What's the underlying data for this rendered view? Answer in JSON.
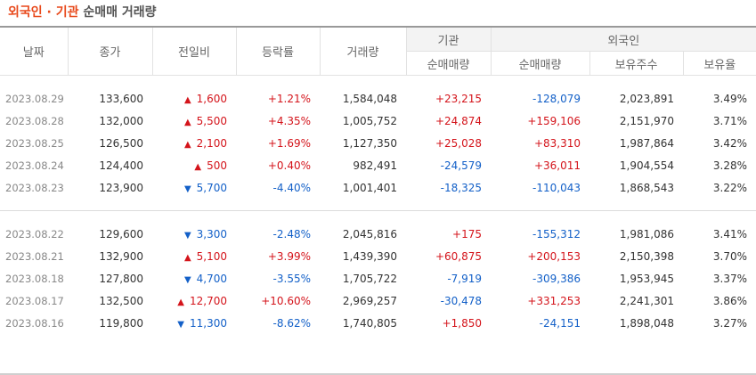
{
  "title": {
    "highlight": "외국인 · 기관",
    "rest": "순매매 거래량"
  },
  "headers": {
    "date": "날짜",
    "close": "종가",
    "change": "전일비",
    "rate": "등락률",
    "volume": "거래량",
    "institution_group": "기관",
    "foreign_group": "외국인",
    "inst_net": "순매매량",
    "foreign_net": "순매매량",
    "foreign_holdings": "보유주수",
    "foreign_ratio": "보유율"
  },
  "rows": [
    {
      "date": "2023.08.29",
      "close": "133,600",
      "dir": "up",
      "change": "1,600",
      "rate": "+1.21%",
      "volume": "1,584,048",
      "inst": "+23,215",
      "foreign": "-128,079",
      "holdings": "2,023,891",
      "ratio": "3.49%"
    },
    {
      "date": "2023.08.28",
      "close": "132,000",
      "dir": "up",
      "change": "5,500",
      "rate": "+4.35%",
      "volume": "1,005,752",
      "inst": "+24,874",
      "foreign": "+159,106",
      "holdings": "2,151,970",
      "ratio": "3.71%"
    },
    {
      "date": "2023.08.25",
      "close": "126,500",
      "dir": "up",
      "change": "2,100",
      "rate": "+1.69%",
      "volume": "1,127,350",
      "inst": "+25,028",
      "foreign": "+83,310",
      "holdings": "1,987,864",
      "ratio": "3.42%"
    },
    {
      "date": "2023.08.24",
      "close": "124,400",
      "dir": "up",
      "change": "500",
      "rate": "+0.40%",
      "volume": "982,491",
      "inst": "-24,579",
      "foreign": "+36,011",
      "holdings": "1,904,554",
      "ratio": "3.28%"
    },
    {
      "date": "2023.08.23",
      "close": "123,900",
      "dir": "down",
      "change": "5,700",
      "rate": "-4.40%",
      "volume": "1,001,401",
      "inst": "-18,325",
      "foreign": "-110,043",
      "holdings": "1,868,543",
      "ratio": "3.22%"
    },
    {
      "date": "2023.08.22",
      "close": "129,600",
      "dir": "down",
      "change": "3,300",
      "rate": "-2.48%",
      "volume": "2,045,816",
      "inst": "+175",
      "foreign": "-155,312",
      "holdings": "1,981,086",
      "ratio": "3.41%"
    },
    {
      "date": "2023.08.21",
      "close": "132,900",
      "dir": "up",
      "change": "5,100",
      "rate": "+3.99%",
      "volume": "1,439,390",
      "inst": "+60,875",
      "foreign": "+200,153",
      "holdings": "2,150,398",
      "ratio": "3.70%"
    },
    {
      "date": "2023.08.18",
      "close": "127,800",
      "dir": "down",
      "change": "4,700",
      "rate": "-3.55%",
      "volume": "1,705,722",
      "inst": "-7,919",
      "foreign": "-309,386",
      "holdings": "1,953,945",
      "ratio": "3.37%"
    },
    {
      "date": "2023.08.17",
      "close": "132,500",
      "dir": "up",
      "change": "12,700",
      "rate": "+10.60%",
      "volume": "2,969,257",
      "inst": "-30,478",
      "foreign": "+331,253",
      "holdings": "2,241,301",
      "ratio": "3.86%"
    },
    {
      "date": "2023.08.16",
      "close": "119,800",
      "dir": "down",
      "change": "11,300",
      "rate": "-8.62%",
      "volume": "1,740,805",
      "inst": "+1,850",
      "foreign": "-24,151",
      "holdings": "1,898,048",
      "ratio": "3.27%"
    }
  ],
  "arrows": {
    "up": "▲",
    "down": "▼"
  },
  "colors": {
    "up": "#d4141b",
    "down": "#1360c8",
    "title_accent": "#e8491b"
  }
}
